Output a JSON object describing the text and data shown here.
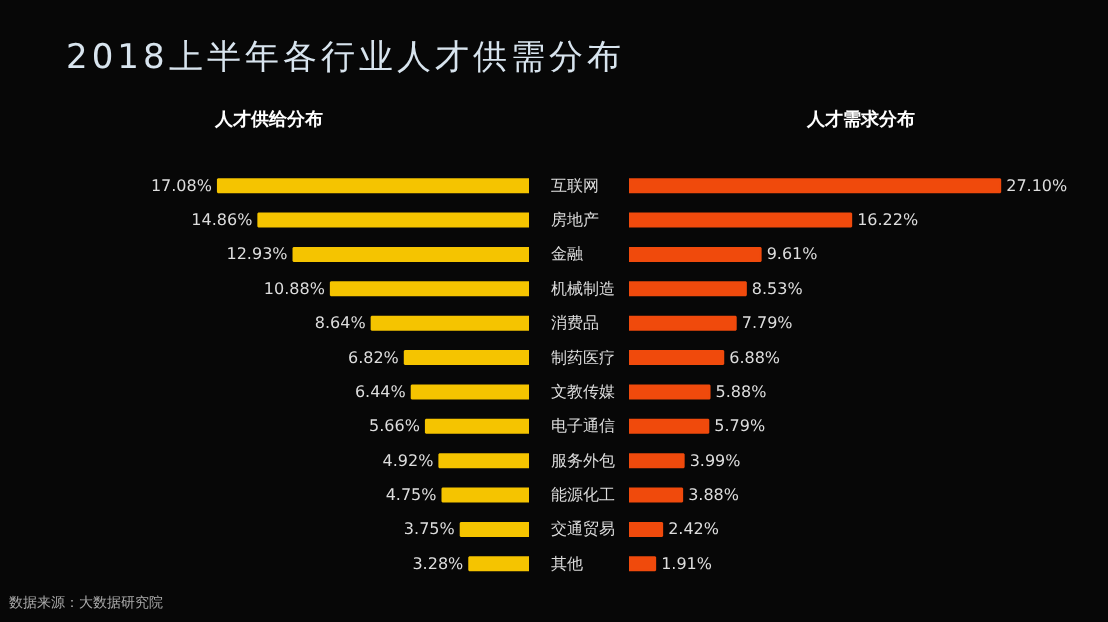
{
  "chart_data": [
    {
      "type": "bar",
      "orientation": "horizontal",
      "title": "2018上半年各行业人才供需分布",
      "subtitle": "人才供给分布",
      "categories": [
        "互联网",
        "房地产",
        "金融",
        "机械制造",
        "消费品",
        "制药医疗",
        "文教传媒",
        "电子通信",
        "服务外包",
        "能源化工",
        "交通贸易",
        "其他"
      ],
      "values": [
        17.08,
        14.86,
        12.93,
        10.88,
        8.64,
        6.82,
        6.44,
        5.66,
        4.92,
        4.75,
        3.75,
        3.28
      ],
      "value_labels": [
        "17.08%",
        "14.86%",
        "12.93%",
        "10.88%",
        "8.64%",
        "6.82%",
        "6.44%",
        "5.66%",
        "4.92%",
        "4.75%",
        "3.75%",
        "3.28%"
      ],
      "color": "#f5c400",
      "tick_labels": "y",
      "grid": false,
      "annotations": [
        "数据来源：大数据研究院"
      ]
    },
    {
      "type": "bar",
      "orientation": "horizontal",
      "title": "人才需求分布",
      "categories": [
        null,
        null,
        null,
        null,
        null,
        null,
        null,
        null,
        null,
        null,
        null,
        null
      ],
      "values": [
        27.1,
        16.22,
        9.61,
        8.53,
        7.79,
        6.88,
        5.88,
        5.79,
        3.99,
        3.88,
        2.42,
        1.91
      ],
      "value_labels": [
        "27.10%",
        "16.22%",
        "9.61%",
        "8.53%",
        "7.79%",
        "6.88%",
        "5.88%",
        "5.79%",
        "3.99%",
        "3.88%",
        "2.42%",
        "1.91%"
      ],
      "color": "#f04a0c",
      "tick_labels": false,
      "grid": false
    }
  ]
}
